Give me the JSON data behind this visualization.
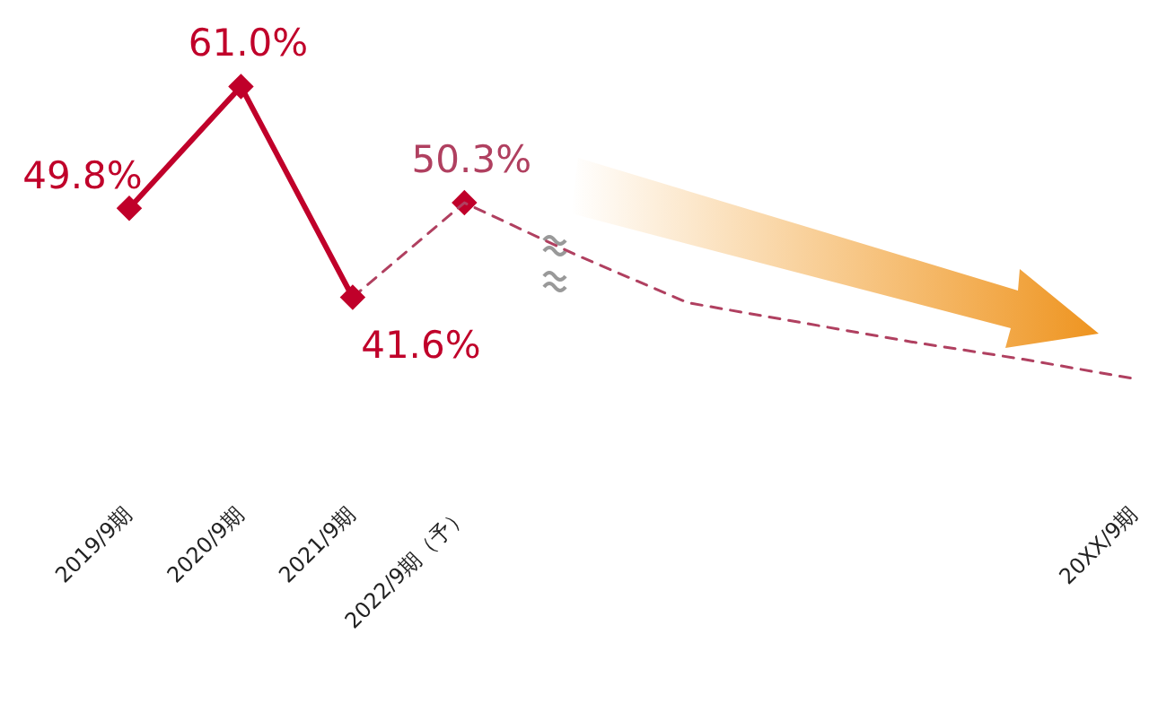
{
  "chart_data": {
    "type": "line",
    "categories": [
      "2019/9期",
      "2020/9期",
      "2021/9期",
      "2022/9期（予）",
      null,
      null,
      null,
      null,
      null,
      "20XX/9期"
    ],
    "series": [
      {
        "color": "#c0002a",
        "line_style": "solid",
        "marker": "diamond",
        "values": [
          49.8,
          61.0,
          41.6,
          null,
          null,
          null,
          null,
          null,
          null,
          null
        ],
        "value_labels": [
          "49.8%",
          "61.0%",
          "41.6%",
          null,
          null,
          null,
          null,
          null,
          null,
          null
        ]
      },
      {
        "color": "#b04060",
        "line_style": "dashed",
        "marker": "none",
        "values": [
          null,
          null,
          41.6,
          50.3,
          45.5,
          41.1,
          39.3,
          37.5,
          35.9,
          34.1
        ],
        "value_labels": [
          null,
          null,
          null,
          "50.3%",
          null,
          null,
          null,
          null,
          null,
          null
        ]
      },
      {
        "color": "#c0002a",
        "line_style": "solid",
        "marker": "diamond",
        "values": [
          null,
          null,
          null,
          50.3,
          null,
          null,
          null,
          null,
          null,
          null
        ]
      }
    ],
    "grid": false,
    "legend": false
  }
}
